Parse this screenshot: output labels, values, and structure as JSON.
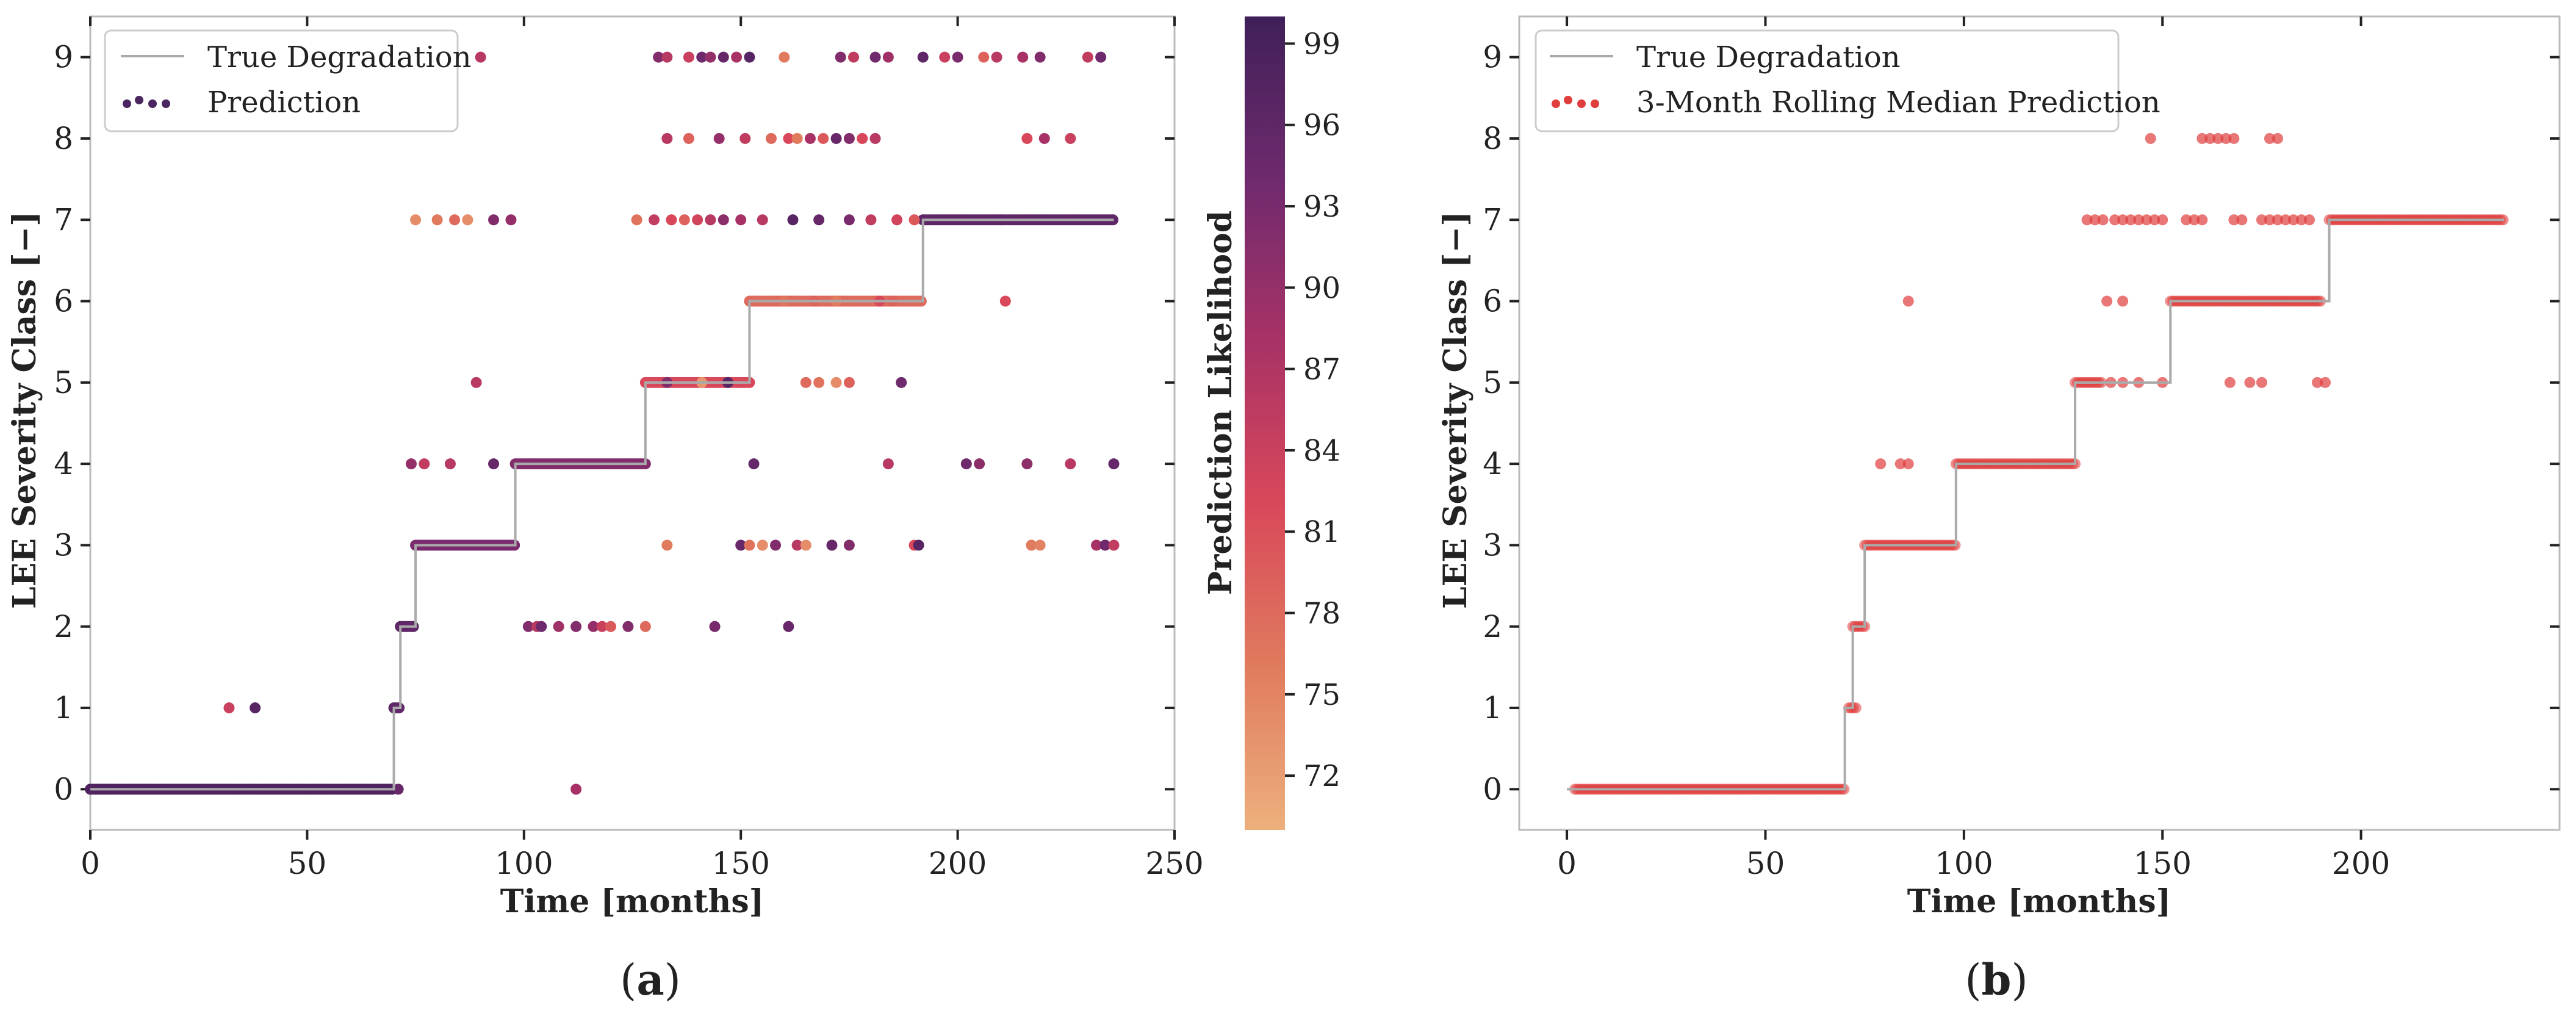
{
  "chart_data": [
    {
      "id": "a",
      "type": "scatter",
      "caption_parts": [
        "(",
        "a",
        ")"
      ],
      "xlabel": "Time [months]",
      "ylabel": "LEE Severity Class [−]",
      "xlim": [
        0,
        250
      ],
      "ylim": [
        -0.5,
        9.5
      ],
      "xticks": [
        0,
        50,
        100,
        150,
        200,
        250
      ],
      "yticks": [
        0,
        1,
        2,
        3,
        4,
        5,
        6,
        7,
        8,
        9
      ],
      "legend": {
        "position": "top-left",
        "entries": [
          "True Degradation",
          "Prediction"
        ]
      },
      "colorbar": {
        "label": "Prediction Likelihood",
        "range": [
          70,
          100
        ],
        "ticks": [
          72,
          75,
          78,
          81,
          84,
          87,
          90,
          93,
          96,
          99
        ],
        "colors": [
          "#edb07d",
          "#e07b5e",
          "#d9485a",
          "#a83266",
          "#6f2a6e",
          "#3f2058"
        ]
      },
      "series": [
        {
          "name": "True Degradation",
          "type": "step",
          "color": "#aaaaaa",
          "steps": [
            [
              0,
              0
            ],
            [
              70,
              1
            ],
            [
              71.5,
              2
            ],
            [
              75,
              3
            ],
            [
              98,
              4
            ],
            [
              128,
              5
            ],
            [
              152,
              6
            ],
            [
              192,
              7
            ],
            [
              236,
              7
            ]
          ]
        },
        {
          "name": "Prediction",
          "type": "scatter",
          "continuous": [
            {
              "x_start": 0,
              "x_end": 70,
              "y": 0,
              "likelihood": 98
            },
            {
              "x_start": 70,
              "x_end": 71.5,
              "y": 1,
              "likelihood": 96
            },
            {
              "x_start": 71.5,
              "x_end": 75,
              "y": 2,
              "likelihood": 96
            },
            {
              "x_start": 75,
              "x_end": 98,
              "y": 3,
              "likelihood": 93
            },
            {
              "x_start": 98,
              "x_end": 128,
              "y": 4,
              "likelihood": 92
            },
            {
              "x_start": 128,
              "x_end": 152,
              "y": 5,
              "likelihood": 82
            },
            {
              "x_start": 152,
              "x_end": 192,
              "y": 6,
              "likelihood": 78
            },
            {
              "x_start": 192,
              "x_end": 236,
              "y": 7,
              "likelihood": 96
            }
          ],
          "points": [
            [
              32,
              1,
              84
            ],
            [
              38,
              1,
              97
            ],
            [
              71,
              0,
              95
            ],
            [
              112,
              0,
              88
            ],
            [
              101,
              2,
              92
            ],
            [
              103,
              2,
              86
            ],
            [
              104,
              2,
              94
            ],
            [
              108,
              2,
              89
            ],
            [
              112,
              2,
              92
            ],
            [
              116,
              2,
              90
            ],
            [
              118,
              2,
              84
            ],
            [
              120,
              2,
              80
            ],
            [
              124,
              2,
              92
            ],
            [
              128,
              2,
              78
            ],
            [
              144,
              2,
              93
            ],
            [
              161,
              2,
              95
            ],
            [
              133,
              3,
              76
            ],
            [
              150,
              3,
              95
            ],
            [
              152,
              3,
              77
            ],
            [
              155,
              3,
              74
            ],
            [
              158,
              3,
              92
            ],
            [
              163,
              3,
              86
            ],
            [
              165,
              3,
              74
            ],
            [
              171,
              3,
              95
            ],
            [
              175,
              3,
              92
            ],
            [
              190,
              3,
              82
            ],
            [
              191,
              3,
              97
            ],
            [
              217,
              3,
              76
            ],
            [
              219,
              3,
              75
            ],
            [
              232,
              3,
              88
            ],
            [
              234,
              3,
              94
            ],
            [
              236,
              3,
              85
            ],
            [
              74,
              4,
              90
            ],
            [
              77,
              4,
              85
            ],
            [
              83,
              4,
              86
            ],
            [
              93,
              4,
              95
            ],
            [
              153,
              4,
              95
            ],
            [
              184,
              4,
              86
            ],
            [
              202,
              4,
              94
            ],
            [
              205,
              4,
              91
            ],
            [
              216,
              4,
              91
            ],
            [
              226,
              4,
              86
            ],
            [
              236,
              4,
              95
            ],
            [
              89,
              5,
              86
            ],
            [
              133,
              5,
              92
            ],
            [
              141,
              5,
              73
            ],
            [
              147,
              5,
              97
            ],
            [
              165,
              5,
              78
            ],
            [
              168,
              5,
              77
            ],
            [
              172,
              5,
              74
            ],
            [
              175,
              5,
              79
            ],
            [
              187,
              5,
              94
            ],
            [
              160,
              6,
              77
            ],
            [
              167,
              6,
              79
            ],
            [
              172,
              6,
              76
            ],
            [
              182,
              6,
              82
            ],
            [
              185,
              6,
              79
            ],
            [
              211,
              6,
              82
            ],
            [
              75,
              7,
              74
            ],
            [
              80,
              7,
              76
            ],
            [
              84,
              7,
              78
            ],
            [
              87,
              7,
              74
            ],
            [
              93,
              7,
              92
            ],
            [
              97,
              7,
              90
            ],
            [
              126,
              7,
              77
            ],
            [
              130,
              7,
              85
            ],
            [
              134,
              7,
              82
            ],
            [
              137,
              7,
              79
            ],
            [
              140,
              7,
              83
            ],
            [
              143,
              7,
              86
            ],
            [
              146,
              7,
              91
            ],
            [
              150,
              7,
              88
            ],
            [
              155,
              7,
              86
            ],
            [
              162,
              7,
              97
            ],
            [
              168,
              7,
              95
            ],
            [
              175,
              7,
              93
            ],
            [
              180,
              7,
              85
            ],
            [
              186,
              7,
              83
            ],
            [
              190,
              7,
              80
            ],
            [
              133,
              8,
              86
            ],
            [
              138,
              8,
              79
            ],
            [
              145,
              8,
              90
            ],
            [
              151,
              8,
              85
            ],
            [
              157,
              8,
              78
            ],
            [
              161,
              8,
              82
            ],
            [
              163,
              8,
              76
            ],
            [
              166,
              8,
              88
            ],
            [
              169,
              8,
              80
            ],
            [
              172,
              8,
              95
            ],
            [
              175,
              8,
              92
            ],
            [
              178,
              8,
              82
            ],
            [
              181,
              8,
              86
            ],
            [
              216,
              8,
              82
            ],
            [
              220,
              8,
              88
            ],
            [
              226,
              8,
              84
            ],
            [
              90,
              9,
              86
            ],
            [
              131,
              9,
              92
            ],
            [
              133,
              9,
              86
            ],
            [
              138,
              9,
              84
            ],
            [
              141,
              9,
              94
            ],
            [
              143,
              9,
              90
            ],
            [
              146,
              9,
              95
            ],
            [
              149,
              9,
              88
            ],
            [
              152,
              9,
              97
            ],
            [
              160,
              9,
              76
            ],
            [
              173,
              9,
              92
            ],
            [
              176,
              9,
              85
            ],
            [
              181,
              9,
              94
            ],
            [
              184,
              9,
              89
            ],
            [
              192,
              9,
              96
            ],
            [
              197,
              9,
              84
            ],
            [
              200,
              9,
              93
            ],
            [
              206,
              9,
              79
            ],
            [
              209,
              9,
              86
            ],
            [
              215,
              9,
              88
            ],
            [
              219,
              9,
              92
            ],
            [
              230,
              9,
              85
            ],
            [
              233,
              9,
              94
            ]
          ]
        }
      ]
    },
    {
      "id": "b",
      "type": "scatter",
      "caption_parts": [
        "(",
        "b",
        ")"
      ],
      "xlabel": "Time [months]",
      "ylabel": "LEE Severity Class [−]",
      "xlim": [
        -12,
        250
      ],
      "ylim": [
        -0.5,
        9.5
      ],
      "xticks": [
        0,
        50,
        100,
        150,
        200
      ],
      "yticks": [
        0,
        1,
        2,
        3,
        4,
        5,
        6,
        7,
        8,
        9
      ],
      "legend": {
        "position": "top-left",
        "entries": [
          "True Degradation",
          "3-Month Rolling Median Prediction"
        ]
      },
      "series": [
        {
          "name": "True Degradation",
          "type": "step",
          "color": "#aaaaaa",
          "steps": [
            [
              0,
              0
            ],
            [
              70,
              1
            ],
            [
              72,
              2
            ],
            [
              75,
              3
            ],
            [
              98,
              4
            ],
            [
              128,
              5
            ],
            [
              152,
              6
            ],
            [
              192,
              7
            ],
            [
              236,
              7
            ]
          ]
        },
        {
          "name": "3-Month Rolling Median Prediction",
          "type": "scatter",
          "color": "#e03d3d",
          "continuous": [
            {
              "x_start": 2,
              "x_end": 70,
              "y": 0
            },
            {
              "x_start": 71,
              "x_end": 73,
              "y": 1
            },
            {
              "x_start": 72,
              "x_end": 75,
              "y": 2
            },
            {
              "x_start": 75,
              "x_end": 98,
              "y": 3
            },
            {
              "x_start": 98,
              "x_end": 128,
              "y": 4
            },
            {
              "x_start": 128,
              "x_end": 135,
              "y": 5
            },
            {
              "x_start": 152,
              "x_end": 190,
              "y": 6
            },
            {
              "x_start": 192,
              "x_end": 236,
              "y": 7
            }
          ],
          "points": [
            [
              79,
              4
            ],
            [
              84,
              4
            ],
            [
              86,
              4
            ],
            [
              86,
              6
            ],
            [
              137,
              5
            ],
            [
              140,
              5
            ],
            [
              144,
              5
            ],
            [
              150,
              5
            ],
            [
              167,
              5
            ],
            [
              172,
              5
            ],
            [
              175,
              5
            ],
            [
              189,
              5
            ],
            [
              191,
              5
            ],
            [
              136,
              6
            ],
            [
              140,
              6
            ],
            [
              131,
              7
            ],
            [
              133,
              7
            ],
            [
              135,
              7
            ],
            [
              138,
              7
            ],
            [
              140,
              7
            ],
            [
              142,
              7
            ],
            [
              144,
              7
            ],
            [
              146,
              7
            ],
            [
              148,
              7
            ],
            [
              150,
              7
            ],
            [
              156,
              7
            ],
            [
              158,
              7
            ],
            [
              160,
              7
            ],
            [
              168,
              7
            ],
            [
              170,
              7
            ],
            [
              175,
              7
            ],
            [
              177,
              7
            ],
            [
              179,
              7
            ],
            [
              181,
              7
            ],
            [
              183,
              7
            ],
            [
              185,
              7
            ],
            [
              187,
              7
            ],
            [
              147,
              8
            ],
            [
              160,
              8
            ],
            [
              162,
              8
            ],
            [
              164,
              8
            ],
            [
              166,
              8
            ],
            [
              168,
              8
            ],
            [
              177,
              8
            ],
            [
              179,
              8
            ]
          ]
        }
      ]
    }
  ]
}
